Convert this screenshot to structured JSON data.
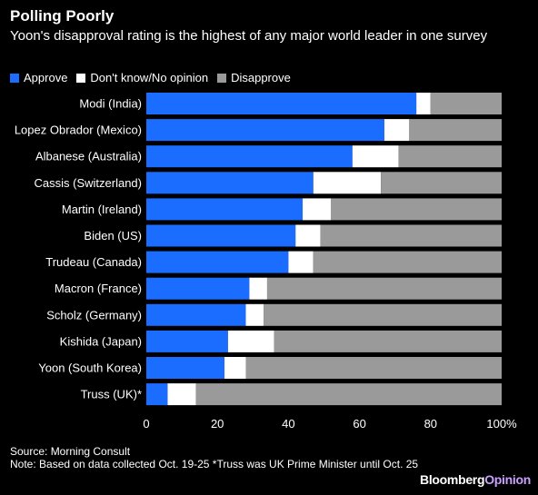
{
  "header": {
    "title": "Polling Poorly",
    "subtitle": "Yoon's disapproval rating is the highest of any major world leader in one survey"
  },
  "colors": {
    "approve": "#1a6dff",
    "dont_know": "#ffffff",
    "disapprove": "#9a9a9a",
    "background": "#000000",
    "brand_opinion": "#c9a0ff"
  },
  "chart_data": {
    "type": "bar",
    "orientation": "horizontal",
    "stacked": true,
    "categories": [
      "Modi (India)",
      "Lopez Obrador (Mexico)",
      "Albanese (Australia)",
      "Cassis (Switzerland)",
      "Martin (Ireland)",
      "Biden (US)",
      "Trudeau (Canada)",
      "Macron (France)",
      "Scholz (Germany)",
      "Kishida (Japan)",
      "Yoon (South Korea)",
      "Truss (UK)*"
    ],
    "series": [
      {
        "name": "Approve",
        "values": [
          76,
          67,
          58,
          47,
          44,
          42,
          40,
          29,
          28,
          23,
          22,
          6
        ]
      },
      {
        "name": "Don't know/No opinion",
        "values": [
          4,
          7,
          13,
          19,
          8,
          7,
          7,
          5,
          5,
          13,
          6,
          8
        ]
      },
      {
        "name": "Disapprove",
        "values": [
          20,
          26,
          29,
          34,
          48,
          51,
          53,
          66,
          67,
          64,
          72,
          86
        ]
      }
    ],
    "xlim": [
      0,
      100
    ],
    "xticks": [
      "0",
      "20",
      "40",
      "60",
      "80",
      "100%"
    ],
    "legend_position": "top-left",
    "grid": false
  },
  "footer": {
    "source": "Source: Morning Consult",
    "note": "Note: Based on data collected Oct. 19-25 *Truss was UK Prime Minister until Oct. 25"
  },
  "brand": {
    "part1": "Bloomberg",
    "part2": "Opinion"
  }
}
